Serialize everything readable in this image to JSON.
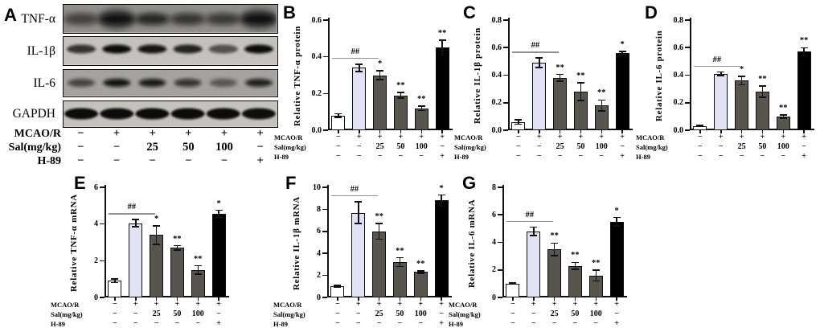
{
  "style": {
    "bar_fills": [
      "#ffffff",
      "#e2e2f6",
      "#57554d",
      "#57554d",
      "#57554d",
      "#000000"
    ],
    "axis_color": "#111111",
    "hash_line_color": "#8f8f8f"
  },
  "panel_a": {
    "letter": "A",
    "blot_rows": [
      {
        "label": "TNF-α",
        "bands": [
          0.5,
          0.9,
          0.75,
          0.62,
          0.58,
          0.92
        ]
      },
      {
        "label": "IL-1β",
        "bands": [
          0.78,
          1.0,
          0.95,
          0.88,
          0.62,
          1.0
        ]
      },
      {
        "label": "IL-6",
        "bands": [
          0.62,
          0.95,
          0.9,
          0.72,
          0.5,
          0.85
        ]
      },
      {
        "label": "GAPDH",
        "bands": [
          1.0,
          1.0,
          1.0,
          1.0,
          1.0,
          0.98
        ]
      }
    ]
  },
  "treatment_matrix": {
    "row_labels": [
      "MCAO/R",
      "Sal(mg/kg)",
      "H-89"
    ],
    "rows": [
      [
        "−",
        "+",
        "+",
        "+",
        "+",
        "+"
      ],
      [
        "−",
        "−",
        "25",
        "50",
        "100",
        "−"
      ],
      [
        "−",
        "−",
        "−",
        "−",
        "−",
        "+"
      ]
    ]
  },
  "chart_data": [
    {
      "type": "bar",
      "letter": "B",
      "ylabel": "Relative TNF-α protein",
      "ymax": 0.6,
      "ylim": [
        0,
        0.6
      ],
      "yticks": [
        "0.0",
        "0.2",
        "0.4",
        "0.6"
      ],
      "values": [
        0.08,
        0.34,
        0.3,
        0.19,
        0.12,
        0.45
      ],
      "errors": [
        0.01,
        0.02,
        0.025,
        0.015,
        0.012,
        0.04
      ],
      "sig": [
        "",
        "",
        "*",
        "**",
        "**",
        "**"
      ],
      "hash_label": "##"
    },
    {
      "type": "bar",
      "letter": "C",
      "ylabel": "Relative IL-1β protein",
      "ymax": 0.8,
      "ylim": [
        0,
        0.8
      ],
      "yticks": [
        "0.0",
        "0.2",
        "0.4",
        "0.6",
        "0.8"
      ],
      "values": [
        0.06,
        0.49,
        0.38,
        0.28,
        0.18,
        0.56
      ],
      "errors": [
        0.015,
        0.035,
        0.025,
        0.065,
        0.04,
        0.012
      ],
      "sig": [
        "",
        "",
        "**",
        "**",
        "**",
        "*"
      ],
      "hash_label": "##"
    },
    {
      "type": "bar",
      "letter": "D",
      "ylabel": "Relative IL-6 protein",
      "ymax": 0.8,
      "ylim": [
        0,
        0.8
      ],
      "yticks": [
        "0.0",
        "0.2",
        "0.4",
        "0.6",
        "0.8"
      ],
      "values": [
        0.03,
        0.41,
        0.36,
        0.28,
        0.1,
        0.57
      ],
      "errors": [
        0.005,
        0.012,
        0.03,
        0.04,
        0.012,
        0.03
      ],
      "sig": [
        "",
        "",
        "*",
        "**",
        "**",
        "**"
      ],
      "hash_label": "##"
    },
    {
      "type": "bar",
      "letter": "E",
      "ylabel": "Relative TNF-α mRNA",
      "ymax": 6,
      "ylim": [
        0,
        6
      ],
      "yticks": [
        "0",
        "2",
        "4",
        "6"
      ],
      "values": [
        0.9,
        4.05,
        3.4,
        2.7,
        1.5,
        4.55
      ],
      "errors": [
        0.1,
        0.2,
        0.5,
        0.12,
        0.22,
        0.2
      ],
      "sig": [
        "",
        "",
        "*",
        "**",
        "**",
        "*"
      ],
      "hash_label": "##"
    },
    {
      "type": "bar",
      "letter": "F",
      "ylabel": "Relative IL-1β mRNA",
      "ymax": 10,
      "ylim": [
        0,
        10
      ],
      "yticks": [
        "0",
        "2",
        "4",
        "6",
        "8",
        "10"
      ],
      "values": [
        1.0,
        7.7,
        6.0,
        3.2,
        2.3,
        8.8
      ],
      "errors": [
        0.08,
        1.0,
        0.7,
        0.4,
        0.12,
        0.5
      ],
      "sig": [
        "",
        "",
        "**",
        "**",
        "**",
        "*"
      ],
      "hash_label": "##"
    },
    {
      "type": "bar",
      "letter": "G",
      "ylabel": "Relative IL-6 mRNA",
      "ymax": 8,
      "ylim": [
        0,
        8
      ],
      "yticks": [
        "0",
        "2",
        "4",
        "6",
        "8"
      ],
      "values": [
        1.0,
        4.8,
        3.5,
        2.3,
        1.6,
        5.5
      ],
      "errors": [
        0.04,
        0.3,
        0.45,
        0.25,
        0.4,
        0.3
      ],
      "sig": [
        "",
        "",
        "**",
        "**",
        "**",
        "*"
      ],
      "hash_label": "##"
    }
  ]
}
